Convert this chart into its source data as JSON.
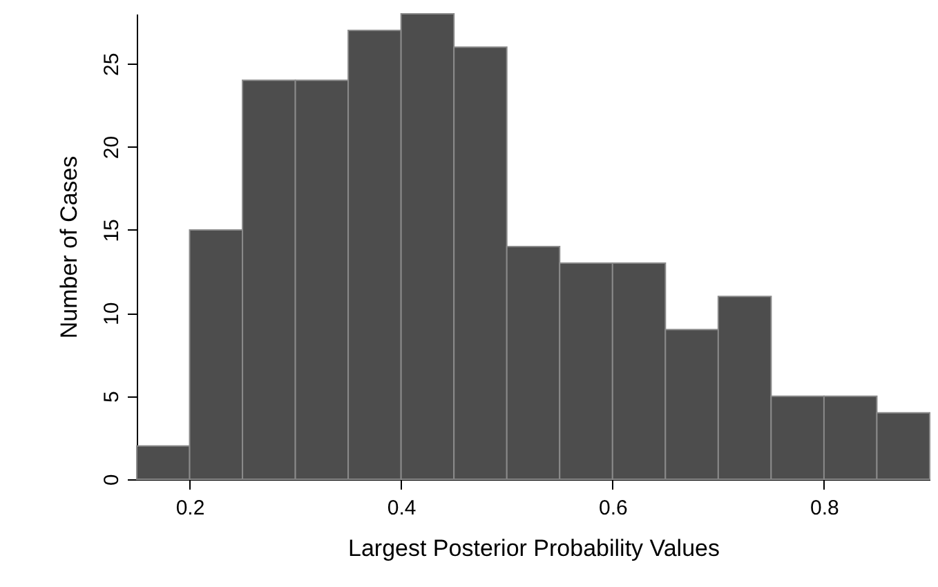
{
  "chart_data": {
    "type": "histogram",
    "xlabel": "Largest Posterior Probability Values",
    "ylabel": "Number of Cases",
    "bins": [
      0.15,
      0.2,
      0.25,
      0.3,
      0.35,
      0.4,
      0.45,
      0.5,
      0.55,
      0.6,
      0.65,
      0.7,
      0.75,
      0.8,
      0.85,
      0.9
    ],
    "values": [
      2,
      15,
      24,
      24,
      27,
      28,
      26,
      14,
      13,
      13,
      9,
      11,
      5,
      5,
      4
    ],
    "color": "#4d4d4d",
    "xlim": [
      0.15,
      0.9
    ],
    "xticks": [
      0.2,
      0.4,
      0.6,
      0.8
    ],
    "ylim": [
      0,
      28
    ],
    "yticks": [
      0,
      5,
      10,
      15,
      20,
      25
    ],
    "grid": false
  }
}
